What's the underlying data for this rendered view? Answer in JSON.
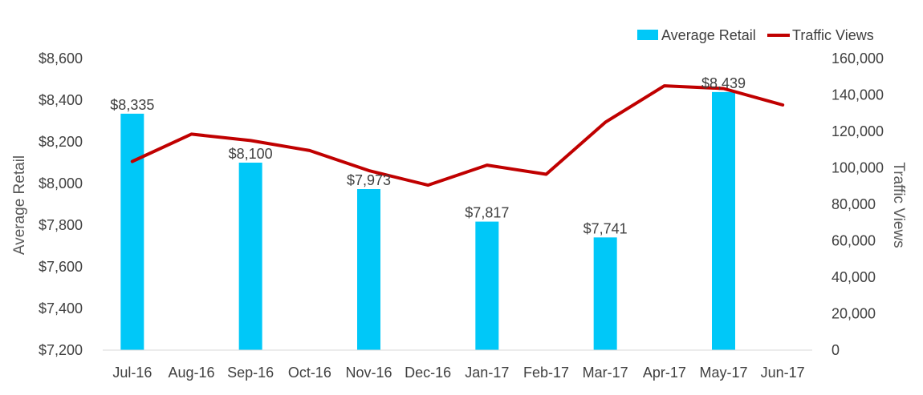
{
  "chart_data": {
    "type": "bar",
    "categories": [
      "Jul-16",
      "Aug-16",
      "Sep-16",
      "Oct-16",
      "Nov-16",
      "Dec-16",
      "Jan-17",
      "Feb-17",
      "Mar-17",
      "Apr-17",
      "May-17",
      "Jun-17"
    ],
    "series": [
      {
        "name": "Average Retail",
        "type": "bar",
        "axis": "left",
        "color": "#00C8F8",
        "values": [
          8335,
          null,
          8100,
          null,
          7973,
          null,
          7817,
          null,
          7741,
          null,
          8439,
          null
        ],
        "labels": [
          "$8,335",
          "",
          "$8,100",
          "",
          "$7,973",
          "",
          "$7,817",
          "",
          "$7,741",
          "",
          "$8,439",
          ""
        ]
      },
      {
        "name": "Traffic Views",
        "type": "line",
        "axis": "right",
        "color": "#C00000",
        "values": [
          103500,
          118500,
          115000,
          109500,
          98500,
          90500,
          101500,
          96500,
          125000,
          145000,
          143500,
          134500
        ]
      }
    ],
    "ylabel": "Average Retail",
    "y2label": "Traffic Views",
    "ylim": [
      7200,
      8600
    ],
    "y2lim": [
      0,
      160000
    ],
    "yticks": [
      "$7,200",
      "$7,400",
      "$7,600",
      "$7,800",
      "$8,000",
      "$8,200",
      "$8,400",
      "$8,600"
    ],
    "y2ticks": [
      "0",
      "20,000",
      "40,000",
      "60,000",
      "80,000",
      "100,000",
      "120,000",
      "140,000",
      "160,000"
    ],
    "grid": false,
    "legend_position": "top-right"
  }
}
